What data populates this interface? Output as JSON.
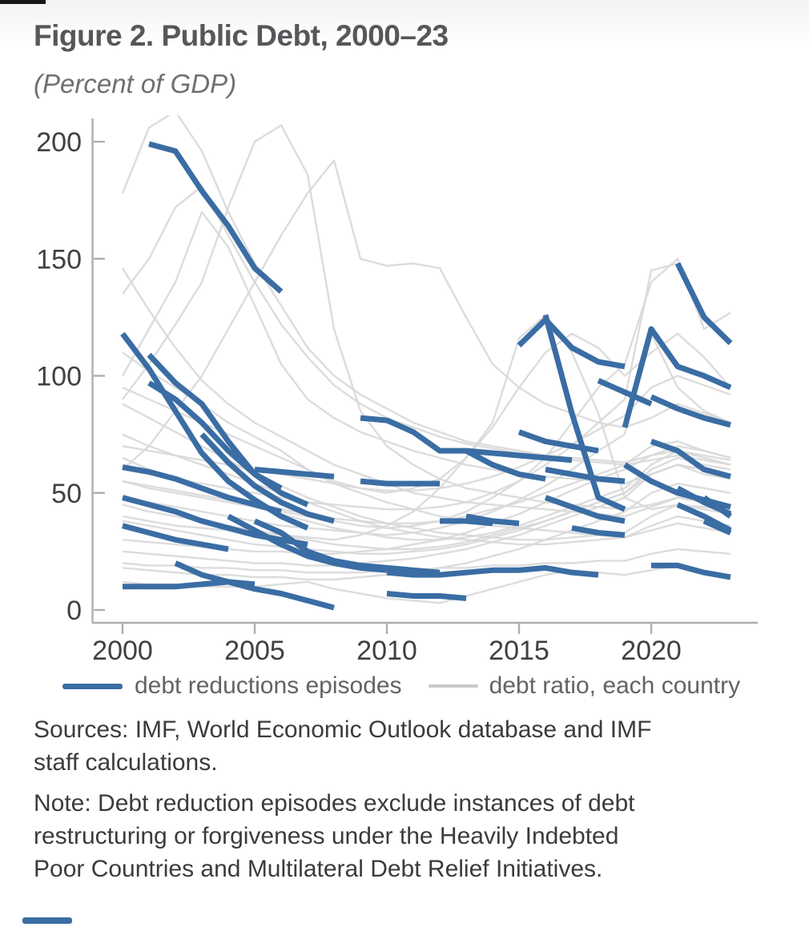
{
  "header": {
    "title": "Figure 2. Public Debt, 2000–23",
    "subtitle": "(Percent of GDP)"
  },
  "legend": {
    "episodes_label": "debt reductions episodes",
    "countries_label": "debt ratio, each country"
  },
  "footer": {
    "sources_lines": [
      "Sources: IMF, World Economic Outlook database and IMF",
      "staff calculations."
    ],
    "note_lines": [
      "Note: Debt reduction episodes exclude instances of debt",
      "restructuring or forgiveness under the Heavily Indebted",
      "Poor Countries and Multilateral Debt Relief Initiatives."
    ]
  },
  "colors": {
    "episode_blue": "#3a6da4",
    "country_gray": "#d8d8d9",
    "axis_gray": "#adaeaf",
    "label_dark": "#3f4042"
  },
  "chart_data": {
    "type": "line",
    "title": "Figure 2. Public Debt, 2000–23",
    "subtitle": "(Percent of GDP)",
    "xlabel": "",
    "ylabel": "Percent of GDP",
    "xlim": [
      1999.5,
      2024
    ],
    "ylim": [
      0,
      209
    ],
    "grid": false,
    "legend_position": "bottom",
    "x_ticks": [
      2000,
      2005,
      2010,
      2015,
      2020
    ],
    "y_ticks": [
      0,
      50,
      100,
      150,
      200
    ],
    "years": [
      2000,
      2001,
      2002,
      2003,
      2004,
      2005,
      2006,
      2007,
      2008,
      2009,
      2010,
      2011,
      2012,
      2013,
      2014,
      2015,
      2016,
      2017,
      2018,
      2019,
      2020,
      2021,
      2022,
      2023
    ],
    "series_names": [
      "debt ratio, each country (gray)",
      "debt reductions episodes (blue)"
    ],
    "country_series": [
      [
        178,
        206,
        213,
        196,
        170,
        148,
        130,
        112,
        100,
        92,
        86,
        80,
        76,
        72,
        70,
        68,
        66,
        65,
        64,
        63,
        66,
        70,
        68,
        65
      ],
      [
        135,
        150,
        172,
        181,
        160,
        140,
        122,
        108,
        96,
        88,
        82,
        78,
        74,
        71,
        69,
        67,
        66,
        64,
        63,
        62,
        64,
        66,
        64,
        62
      ],
      [
        90,
        105,
        122,
        140,
        172,
        200,
        207,
        186,
        120,
        85,
        70,
        62,
        56,
        52,
        50,
        48,
        46,
        45,
        44,
        43,
        45,
        48,
        46,
        44
      ],
      [
        60,
        70,
        85,
        100,
        120,
        140,
        160,
        178,
        192,
        150,
        147,
        148,
        146,
        125,
        105,
        95,
        88,
        84,
        80,
        78,
        82,
        88,
        84,
        80
      ],
      [
        100,
        120,
        140,
        170,
        155,
        130,
        105,
        90,
        82,
        76,
        72,
        68,
        65,
        62,
        60,
        58,
        57,
        56,
        55,
        54,
        58,
        62,
        60,
        58
      ],
      [
        146,
        128,
        112,
        98,
        88,
        80,
        74,
        68,
        62,
        58,
        54,
        50,
        48,
        46,
        45,
        44,
        43,
        42,
        41,
        40,
        44,
        48,
        46,
        44
      ],
      [
        110,
        102,
        95,
        88,
        80,
        74,
        68,
        60,
        54,
        50,
        46,
        43,
        40,
        38,
        36,
        35,
        34,
        33,
        32,
        31,
        34,
        37,
        35,
        33
      ],
      [
        95,
        90,
        85,
        80,
        75,
        70,
        65,
        60,
        55,
        52,
        50,
        52,
        56,
        65,
        78,
        95,
        110,
        118,
        112,
        100,
        110,
        118,
        108,
        95
      ],
      [
        55,
        52,
        50,
        48,
        46,
        44,
        42,
        40,
        38,
        36,
        35,
        36,
        38,
        42,
        48,
        55,
        65,
        80,
        95,
        105,
        140,
        150,
        120,
        127
      ],
      [
        48,
        46,
        44,
        42,
        40,
        38,
        36,
        35,
        34,
        33,
        32,
        33,
        35,
        38,
        42,
        47,
        53,
        60,
        68,
        75,
        118,
        95,
        85,
        80
      ],
      [
        88,
        82,
        76,
        70,
        64,
        58,
        53,
        48,
        44,
        40,
        37,
        35,
        33,
        32,
        31,
        30,
        30,
        31,
        32,
        33,
        40,
        45,
        43,
        41
      ],
      [
        75,
        70,
        66,
        62,
        58,
        54,
        50,
        46,
        42,
        38,
        35,
        33,
        31,
        30,
        29,
        28,
        28,
        29,
        30,
        31,
        36,
        40,
        38,
        36
      ],
      [
        25,
        24,
        23,
        22,
        21,
        20,
        20,
        19,
        19,
        20,
        21,
        22,
        24,
        26,
        29,
        32,
        36,
        40,
        44,
        48,
        58,
        62,
        58,
        56
      ],
      [
        18,
        17,
        16,
        15,
        15,
        14,
        14,
        13,
        13,
        14,
        15,
        16,
        18,
        20,
        23,
        26,
        30,
        34,
        38,
        42,
        50,
        54,
        52,
        50
      ],
      [
        20,
        19,
        19,
        18,
        18,
        17,
        17,
        16,
        16,
        16,
        17,
        17,
        18,
        18,
        19,
        19,
        20,
        20,
        21,
        21,
        24,
        26,
        25,
        24
      ],
      [
        45,
        42,
        40,
        38,
        36,
        34,
        32,
        30,
        28,
        27,
        26,
        26,
        27,
        29,
        32,
        35,
        38,
        42,
        46,
        50,
        60,
        65,
        62,
        60
      ],
      [
        65,
        60,
        56,
        52,
        48,
        44,
        41,
        38,
        35,
        33,
        31,
        30,
        30,
        31,
        33,
        36,
        40,
        44,
        48,
        52,
        62,
        68,
        65,
        62
      ],
      [
        38,
        36,
        34,
        32,
        30,
        28,
        27,
        26,
        25,
        24,
        24,
        25,
        26,
        28,
        31,
        34,
        38,
        42,
        46,
        50,
        58,
        62,
        60,
        57
      ],
      [
        40,
        38,
        36,
        35,
        34,
        33,
        32,
        31,
        30,
        32,
        36,
        42,
        52,
        65,
        80,
        116,
        126,
        110,
        84,
        48,
        43,
        45,
        44,
        43
      ],
      [
        60,
        58,
        56,
        54,
        52,
        50,
        48,
        46,
        45,
        44,
        43,
        43,
        44,
        46,
        50,
        55,
        62,
        70,
        80,
        90,
        145,
        148,
        124,
        115
      ],
      [
        12,
        11,
        11,
        10,
        10,
        10,
        11,
        12,
        9,
        7,
        5,
        4,
        3,
        6,
        9,
        12,
        15,
        17,
        16,
        15,
        17,
        19,
        16,
        14
      ],
      [
        30,
        29,
        28,
        27,
        26,
        25,
        25,
        24,
        24,
        25,
        26,
        28,
        30,
        33,
        37,
        41,
        46,
        51,
        56,
        60,
        66,
        68,
        66,
        64
      ],
      [
        55,
        53,
        51,
        49,
        47,
        45,
        43,
        41,
        39,
        38,
        37,
        37,
        38,
        40,
        43,
        46,
        50,
        54,
        58,
        62,
        70,
        72,
        68,
        65
      ],
      [
        70,
        68,
        66,
        64,
        62,
        60,
        58,
        56,
        54,
        52,
        51,
        51,
        52,
        54,
        57,
        61,
        66,
        71,
        77,
        83,
        95,
        100,
        96,
        92
      ]
    ],
    "episodes": [
      [
        [
          2001,
          199
        ],
        [
          2002,
          196
        ],
        [
          2003,
          179
        ],
        [
          2004,
          164
        ],
        [
          2005,
          146
        ],
        [
          2006,
          136
        ]
      ],
      [
        [
          2000,
          118
        ],
        [
          2001,
          103
        ],
        [
          2002,
          85
        ],
        [
          2003,
          67
        ],
        [
          2004,
          55
        ],
        [
          2005,
          47
        ],
        [
          2006,
          40
        ],
        [
          2007,
          35
        ]
      ],
      [
        [
          2001,
          109
        ],
        [
          2002,
          97
        ],
        [
          2003,
          88
        ],
        [
          2004,
          72
        ],
        [
          2005,
          58
        ],
        [
          2006,
          50
        ],
        [
          2007,
          45
        ]
      ],
      [
        [
          2001,
          97
        ],
        [
          2002,
          90
        ],
        [
          2003,
          80
        ],
        [
          2004,
          68
        ],
        [
          2005,
          58
        ],
        [
          2006,
          52
        ]
      ],
      [
        [
          2000,
          61
        ],
        [
          2001,
          59
        ],
        [
          2002,
          56
        ],
        [
          2003,
          52
        ],
        [
          2004,
          48
        ],
        [
          2005,
          45
        ],
        [
          2006,
          42
        ]
      ],
      [
        [
          2000,
          48
        ],
        [
          2001,
          45
        ],
        [
          2002,
          42
        ],
        [
          2003,
          38
        ],
        [
          2004,
          35
        ],
        [
          2005,
          32
        ],
        [
          2006,
          30
        ],
        [
          2007,
          28
        ]
      ],
      [
        [
          2000,
          36
        ],
        [
          2001,
          33
        ],
        [
          2002,
          30
        ],
        [
          2003,
          28
        ],
        [
          2004,
          26
        ]
      ],
      [
        [
          2000,
          10
        ],
        [
          2001,
          10
        ],
        [
          2002,
          10
        ],
        [
          2003,
          11
        ],
        [
          2004,
          12
        ],
        [
          2005,
          11
        ]
      ],
      [
        [
          2002,
          20
        ],
        [
          2003,
          15
        ],
        [
          2004,
          12
        ],
        [
          2005,
          9
        ],
        [
          2006,
          7
        ],
        [
          2007,
          4
        ],
        [
          2008,
          1
        ]
      ],
      [
        [
          2003,
          75
        ],
        [
          2004,
          63
        ],
        [
          2005,
          53
        ],
        [
          2006,
          46
        ],
        [
          2007,
          41
        ],
        [
          2008,
          38
        ]
      ],
      [
        [
          2004,
          40
        ],
        [
          2005,
          34
        ],
        [
          2006,
          28
        ],
        [
          2007,
          23
        ],
        [
          2008,
          20
        ],
        [
          2009,
          18
        ],
        [
          2010,
          17
        ]
      ],
      [
        [
          2005,
          60
        ],
        [
          2006,
          59
        ],
        [
          2007,
          58
        ],
        [
          2008,
          57
        ]
      ],
      [
        [
          2005,
          38
        ],
        [
          2006,
          33
        ],
        [
          2007,
          25
        ],
        [
          2008,
          21
        ],
        [
          2009,
          19
        ],
        [
          2010,
          18
        ],
        [
          2011,
          17
        ],
        [
          2012,
          16
        ]
      ],
      [
        [
          2009,
          82
        ],
        [
          2010,
          81
        ],
        [
          2011,
          76
        ],
        [
          2012,
          68
        ],
        [
          2013,
          68
        ],
        [
          2014,
          62
        ],
        [
          2015,
          58
        ],
        [
          2016,
          56
        ]
      ],
      [
        [
          2009,
          55
        ],
        [
          2010,
          54
        ],
        [
          2011,
          54
        ],
        [
          2012,
          54
        ]
      ],
      [
        [
          2012,
          38
        ],
        [
          2013,
          38
        ],
        [
          2014,
          37
        ]
      ],
      [
        [
          2010,
          16
        ],
        [
          2011,
          15
        ],
        [
          2012,
          15
        ],
        [
          2013,
          16
        ],
        [
          2014,
          17
        ],
        [
          2015,
          17
        ],
        [
          2016,
          18
        ],
        [
          2017,
          16
        ],
        [
          2018,
          15
        ]
      ],
      [
        [
          2010,
          7
        ],
        [
          2011,
          6
        ],
        [
          2012,
          6
        ],
        [
          2013,
          5
        ]
      ],
      [
        [
          2013,
          68
        ],
        [
          2014,
          67
        ],
        [
          2015,
          66
        ],
        [
          2016,
          65
        ],
        [
          2017,
          64
        ]
      ],
      [
        [
          2016,
          126
        ],
        [
          2017,
          84
        ],
        [
          2018,
          48
        ],
        [
          2019,
          43
        ]
      ],
      [
        [
          2015,
          113
        ],
        [
          2016,
          124
        ],
        [
          2017,
          112
        ],
        [
          2018,
          106
        ],
        [
          2019,
          104
        ]
      ],
      [
        [
          2019,
          78
        ],
        [
          2020,
          120
        ],
        [
          2021,
          104
        ],
        [
          2022,
          100
        ],
        [
          2023,
          95
        ]
      ],
      [
        [
          2021,
          148
        ],
        [
          2022,
          125
        ],
        [
          2023,
          114
        ]
      ],
      [
        [
          2020,
          91
        ],
        [
          2021,
          86
        ],
        [
          2022,
          82
        ],
        [
          2023,
          79
        ]
      ],
      [
        [
          2018,
          98
        ],
        [
          2019,
          93
        ],
        [
          2020,
          88
        ]
      ],
      [
        [
          2020,
          72
        ],
        [
          2021,
          68
        ],
        [
          2022,
          60
        ],
        [
          2023,
          57
        ]
      ],
      [
        [
          2021,
          52
        ],
        [
          2022,
          46
        ],
        [
          2023,
          41
        ]
      ],
      [
        [
          2021,
          45
        ],
        [
          2022,
          40
        ],
        [
          2023,
          34
        ]
      ],
      [
        [
          2022,
          48
        ],
        [
          2023,
          40
        ]
      ],
      [
        [
          2020,
          19
        ],
        [
          2021,
          19
        ],
        [
          2022,
          16
        ],
        [
          2023,
          14
        ]
      ],
      [
        [
          2016,
          48
        ],
        [
          2017,
          44
        ],
        [
          2018,
          40
        ],
        [
          2019,
          38
        ]
      ],
      [
        [
          2017,
          35
        ],
        [
          2018,
          33
        ],
        [
          2019,
          32
        ]
      ],
      [
        [
          2015,
          76
        ],
        [
          2016,
          72
        ],
        [
          2017,
          70
        ],
        [
          2018,
          68
        ]
      ],
      [
        [
          2013,
          40
        ],
        [
          2014,
          38
        ],
        [
          2015,
          37
        ]
      ],
      [
        [
          2016,
          60
        ],
        [
          2017,
          58
        ],
        [
          2018,
          56
        ],
        [
          2019,
          55
        ]
      ],
      [
        [
          2019,
          62
        ],
        [
          2020,
          55
        ],
        [
          2021,
          50
        ],
        [
          2022,
          47
        ],
        [
          2023,
          44
        ]
      ],
      [
        [
          2022,
          38
        ],
        [
          2023,
          33
        ]
      ]
    ]
  }
}
